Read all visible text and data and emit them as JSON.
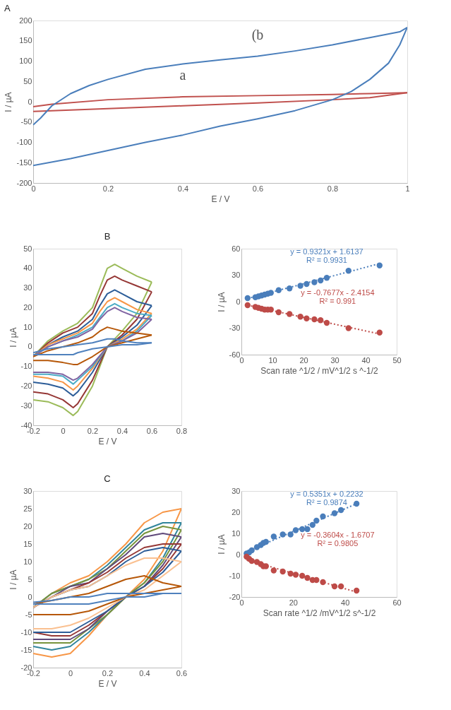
{
  "chart_data": [
    {
      "type": "line",
      "title": "A",
      "xlabel": "E / V",
      "ylabel": "I / µA",
      "xlim": [
        0,
        1
      ],
      "ylim": [
        -200,
        200
      ],
      "xticks": [
        0,
        0.2,
        0.4,
        0.6,
        0.8,
        1
      ],
      "yticks": [
        -200,
        -150,
        -100,
        -50,
        0,
        50,
        100,
        150,
        200
      ],
      "grid": false,
      "line_style": "solid",
      "series": [
        {
          "color": "#c0504d",
          "x": [
            0,
            0.05,
            0.2,
            0.4,
            0.6,
            0.8,
            0.9,
            1
          ],
          "values": [
            -12,
            -6,
            5,
            12,
            15,
            18,
            20,
            22
          ]
        },
        {
          "color": "#c0504d",
          "x": [
            0,
            0.2,
            0.4,
            0.6,
            0.8,
            0.9,
            1
          ],
          "values": [
            -24,
            -17,
            -10,
            -3,
            5,
            10,
            22
          ]
        },
        {
          "color": "#4a7ebb",
          "x": [
            0,
            0.02,
            0.05,
            0.1,
            0.15,
            0.2,
            0.3,
            0.4,
            0.5,
            0.6,
            0.7,
            0.8,
            0.9,
            0.98,
            1
          ],
          "values": [
            -57,
            -40,
            -10,
            20,
            40,
            55,
            80,
            93,
            103,
            112,
            125,
            140,
            158,
            172,
            183
          ]
        },
        {
          "color": "#4a7ebb",
          "x": [
            0,
            0.1,
            0.2,
            0.3,
            0.4,
            0.5,
            0.6,
            0.7,
            0.8,
            0.85,
            0.9,
            0.95,
            0.98,
            1
          ],
          "values": [
            -157,
            -140,
            -120,
            -100,
            -82,
            -60,
            -42,
            -22,
            5,
            25,
            55,
            95,
            140,
            183
          ]
        }
      ],
      "annotations": [
        {
          "text": "a",
          "x": 0.4,
          "y": 12
        },
        {
          "text": "(b",
          "x": 0.6,
          "y": 112
        }
      ]
    },
    {
      "type": "line",
      "title": "B",
      "xlabel": "E / V",
      "ylabel": "I /  µA",
      "xlim": [
        -0.2,
        0.8
      ],
      "ylim": [
        -40,
        50
      ],
      "xticks": [
        -0.2,
        0,
        0.2,
        0.4,
        0.6,
        0.8
      ],
      "yticks": [
        -40,
        -30,
        -20,
        -10,
        0,
        10,
        20,
        30,
        40,
        50
      ],
      "grid": false,
      "line_style": "solid",
      "series": [
        {
          "color": "#9bbb59",
          "x": [
            -0.2,
            -0.1,
            0,
            0.1,
            0.2,
            0.25,
            0.3,
            0.35,
            0.4,
            0.5,
            0.6
          ],
          "values": [
            -5,
            3,
            8,
            12,
            20,
            30,
            40,
            42,
            40,
            36,
            33
          ]
        },
        {
          "color": "#9bbb59",
          "x": [
            -0.2,
            -0.1,
            0,
            0.07,
            0.1,
            0.2,
            0.3,
            0.4,
            0.5,
            0.6
          ],
          "values": [
            -27,
            -28,
            -31,
            -35,
            -33,
            -20,
            0,
            8,
            17,
            33
          ]
        },
        {
          "color": "#953735",
          "x": [
            -0.2,
            -0.1,
            0,
            0.1,
            0.2,
            0.25,
            0.3,
            0.35,
            0.4,
            0.5,
            0.6
          ],
          "values": [
            -5,
            2,
            7,
            10,
            17,
            26,
            34,
            36,
            34,
            31,
            28
          ]
        },
        {
          "color": "#953735",
          "x": [
            -0.2,
            -0.1,
            0,
            0.07,
            0.1,
            0.2,
            0.3,
            0.4,
            0.5,
            0.6
          ],
          "values": [
            -23,
            -24,
            -27,
            -31,
            -29,
            -17,
            0,
            6,
            14,
            28
          ]
        },
        {
          "color": "#2c5d98",
          "x": [
            -0.2,
            -0.1,
            0,
            0.1,
            0.2,
            0.25,
            0.3,
            0.35,
            0.4,
            0.5,
            0.6
          ],
          "values": [
            -5,
            1,
            5,
            8,
            14,
            21,
            27,
            29,
            27,
            23,
            21
          ]
        },
        {
          "color": "#2c5d98",
          "x": [
            -0.2,
            -0.1,
            0,
            0.07,
            0.1,
            0.2,
            0.3,
            0.4,
            0.5,
            0.6
          ],
          "values": [
            -18,
            -19,
            -21,
            -25,
            -23,
            -13,
            0,
            5,
            11,
            21
          ]
        },
        {
          "color": "#f79646",
          "x": [
            -0.2,
            -0.1,
            0,
            0.1,
            0.2,
            0.25,
            0.3,
            0.35,
            0.4,
            0.5,
            0.6
          ],
          "values": [
            -5,
            1,
            4,
            7,
            12,
            18,
            23,
            25,
            23,
            19,
            17
          ]
        },
        {
          "color": "#f79646",
          "x": [
            -0.2,
            -0.1,
            0,
            0.07,
            0.1,
            0.2,
            0.3,
            0.4,
            0.5,
            0.6
          ],
          "values": [
            -15,
            -16,
            -18,
            -22,
            -20,
            -11,
            0,
            4,
            9,
            17
          ]
        },
        {
          "color": "#4bacc6",
          "x": [
            -0.2,
            -0.1,
            0,
            0.1,
            0.2,
            0.25,
            0.3,
            0.35,
            0.4,
            0.5,
            0.6
          ],
          "values": [
            -5,
            0,
            3,
            6,
            10,
            15,
            20,
            22,
            20,
            17,
            16
          ]
        },
        {
          "color": "#4bacc6",
          "x": [
            -0.2,
            -0.1,
            0,
            0.07,
            0.1,
            0.2,
            0.3,
            0.4,
            0.5,
            0.6
          ],
          "values": [
            -14,
            -14,
            -15,
            -19,
            -17,
            -10,
            0,
            3,
            8,
            16
          ]
        },
        {
          "color": "#8064a2",
          "x": [
            -0.2,
            -0.1,
            0,
            0.1,
            0.2,
            0.25,
            0.3,
            0.35,
            0.4,
            0.5,
            0.6
          ],
          "values": [
            -5,
            0,
            3,
            5,
            9,
            14,
            18,
            20,
            18,
            15,
            14
          ]
        },
        {
          "color": "#8064a2",
          "x": [
            -0.2,
            -0.1,
            0,
            0.07,
            0.1,
            0.2,
            0.3,
            0.4,
            0.5,
            0.6
          ],
          "values": [
            -13,
            -13,
            -14,
            -17,
            -16,
            -9,
            0,
            3,
            7,
            14
          ]
        },
        {
          "color": "#b65708",
          "x": [
            -0.2,
            -0.1,
            0,
            0.1,
            0.2,
            0.25,
            0.3,
            0.35,
            0.4,
            0.5,
            0.6
          ],
          "values": [
            -5,
            -2,
            0,
            2,
            5,
            8,
            10,
            9,
            8,
            7,
            6
          ]
        },
        {
          "color": "#b65708",
          "x": [
            -0.2,
            -0.1,
            0,
            0.07,
            0.1,
            0.2,
            0.3,
            0.4,
            0.5,
            0.6
          ],
          "values": [
            -7,
            -7,
            -8,
            -9,
            -9,
            -5,
            0,
            2,
            4,
            6
          ]
        },
        {
          "color": "#4f81bd",
          "x": [
            -0.2,
            -0.1,
            0,
            0.1,
            0.2,
            0.25,
            0.3,
            0.35,
            0.4,
            0.5,
            0.6
          ],
          "values": [
            -3,
            -1,
            0,
            1,
            2,
            3,
            4,
            4,
            3,
            2,
            2
          ]
        },
        {
          "color": "#4f81bd",
          "x": [
            -0.2,
            -0.1,
            0,
            0.07,
            0.1,
            0.2,
            0.3,
            0.4,
            0.5,
            0.6
          ],
          "values": [
            -4,
            -4,
            -4,
            -4,
            -3,
            -1,
            0,
            1,
            1,
            2
          ]
        }
      ]
    },
    {
      "type": "scatter",
      "xlabel": "Scan rate ^1/2 / mV^1/2 s ^-1/2",
      "ylabel": "I / µA",
      "xlim": [
        0,
        50
      ],
      "ylim": [
        -60,
        60
      ],
      "xticks": [
        0,
        10,
        20,
        30,
        40,
        50
      ],
      "yticks": [
        -60,
        -30,
        0,
        30,
        60
      ],
      "grid": false,
      "marker": "circle",
      "series": [
        {
          "color": "#4a7ebb",
          "x": [
            2,
            4.5,
            5.5,
            6.5,
            7.5,
            8.5,
            9.5,
            12,
            15.5,
            19,
            21,
            23.5,
            25.5,
            27.5,
            34.5,
            44.5
          ],
          "values": [
            4,
            5,
            6,
            7,
            8,
            9,
            10,
            13,
            15,
            18,
            20,
            22,
            24,
            27,
            35,
            41
          ]
        },
        {
          "color": "#be4b48",
          "x": [
            2,
            4.5,
            5.5,
            6.5,
            7.5,
            8.5,
            9.5,
            12,
            15.5,
            19,
            21,
            23.5,
            25.5,
            27.5,
            34.5,
            44.5
          ],
          "values": [
            -4,
            -6,
            -7,
            -8,
            -9,
            -9,
            -9,
            -12,
            -14,
            -17,
            -19,
            -20,
            -21,
            -24,
            -30,
            -35
          ]
        },
        {
          "type": "line",
          "marker": "none",
          "line_style": "dotted",
          "color": "#4a7ebb",
          "x": [
            2,
            44.5
          ],
          "values": [
            3.5,
            43.1
          ]
        },
        {
          "type": "line",
          "marker": "none",
          "line_style": "dotted",
          "color": "#be4b48",
          "x": [
            2,
            44.5
          ],
          "values": [
            -4,
            -36.6
          ]
        }
      ],
      "annotations": [
        "y = 0.9321x + 1.6137",
        "R² = 0.9931",
        "y = -0.7677x - 2.4154",
        "R² = 0.991"
      ]
    },
    {
      "type": "line",
      "title": "C",
      "xlabel": "E / V",
      "ylabel": "I / µA",
      "xlim": [
        -0.2,
        0.6
      ],
      "ylim": [
        -20,
        30
      ],
      "xticks": [
        -0.2,
        0,
        0.2,
        0.4,
        0.6
      ],
      "yticks": [
        -20,
        -15,
        -10,
        -5,
        0,
        5,
        10,
        15,
        20,
        25,
        30
      ],
      "grid": false,
      "line_style": "solid",
      "series": [
        {
          "color": "#f79646",
          "x": [
            -0.2,
            -0.1,
            0,
            0.1,
            0.2,
            0.3,
            0.4,
            0.5,
            0.6
          ],
          "values": [
            -3,
            1,
            4,
            6,
            10,
            15,
            21,
            24,
            25
          ]
        },
        {
          "color": "#f79646",
          "x": [
            -0.2,
            -0.1,
            0,
            0.1,
            0.2,
            0.3,
            0.4,
            0.5,
            0.6
          ],
          "values": [
            -16,
            -17,
            -16,
            -11,
            -5,
            0,
            5,
            13,
            25
          ]
        },
        {
          "color": "#31859c",
          "x": [
            -0.2,
            -0.1,
            0,
            0.1,
            0.2,
            0.3,
            0.4,
            0.5,
            0.6
          ],
          "values": [
            -3,
            1,
            3,
            5,
            9,
            14,
            19,
            21,
            21
          ]
        },
        {
          "color": "#31859c",
          "x": [
            -0.2,
            -0.1,
            0,
            0.1,
            0.2,
            0.3,
            0.4,
            0.5,
            0.6
          ],
          "values": [
            -14,
            -15,
            -14,
            -10,
            -5,
            0,
            4,
            11,
            21
          ]
        },
        {
          "color": "#77933c",
          "x": [
            -0.2,
            -0.1,
            0,
            0.1,
            0.2,
            0.3,
            0.4,
            0.5,
            0.6
          ],
          "values": [
            -3,
            1,
            3,
            5,
            8,
            13,
            18,
            20,
            19
          ]
        },
        {
          "color": "#77933c",
          "x": [
            -0.2,
            -0.1,
            0,
            0.1,
            0.2,
            0.3,
            0.4,
            0.5,
            0.6
          ],
          "values": [
            -13,
            -13,
            -13,
            -9,
            -5,
            0,
            4,
            10,
            19
          ]
        },
        {
          "color": "#5f497a",
          "x": [
            -0.2,
            -0.1,
            0,
            0.1,
            0.2,
            0.3,
            0.4,
            0.5,
            0.6
          ],
          "values": [
            -3,
            0,
            3,
            4,
            8,
            12,
            17,
            18,
            17
          ]
        },
        {
          "color": "#5f497a",
          "x": [
            -0.2,
            -0.1,
            0,
            0.1,
            0.2,
            0.3,
            0.4,
            0.5,
            0.6
          ],
          "values": [
            -12,
            -12,
            -12,
            -9,
            -4,
            0,
            3,
            9,
            17
          ]
        },
        {
          "color": "#953735",
          "x": [
            -0.2,
            -0.1,
            0,
            0.1,
            0.2,
            0.3,
            0.4,
            0.5,
            0.6
          ],
          "values": [
            -3,
            0,
            2,
            4,
            7,
            11,
            14,
            15,
            15
          ]
        },
        {
          "color": "#953735",
          "x": [
            -0.2,
            -0.1,
            0,
            0.1,
            0.2,
            0.3,
            0.4,
            0.5,
            0.6
          ],
          "values": [
            -10,
            -11,
            -11,
            -8,
            -4,
            0,
            3,
            8,
            15
          ]
        },
        {
          "color": "#2c5d98",
          "x": [
            -0.2,
            -0.1,
            0,
            0.1,
            0.2,
            0.3,
            0.4,
            0.5,
            0.6
          ],
          "values": [
            -3,
            0,
            2,
            3,
            6,
            10,
            13,
            14,
            13
          ]
        },
        {
          "color": "#2c5d98",
          "x": [
            -0.2,
            -0.1,
            0,
            0.1,
            0.2,
            0.3,
            0.4,
            0.5,
            0.6
          ],
          "values": [
            -10,
            -10,
            -10,
            -7,
            -4,
            0,
            3,
            7,
            13
          ]
        },
        {
          "color": "#fac090",
          "x": [
            -0.2,
            -0.1,
            0,
            0.1,
            0.2,
            0.3,
            0.4,
            0.5,
            0.6
          ],
          "values": [
            -3,
            0,
            2,
            3,
            6,
            9,
            11,
            11,
            10
          ]
        },
        {
          "color": "#fac090",
          "x": [
            -0.2,
            -0.1,
            0,
            0.1,
            0.2,
            0.3,
            0.4,
            0.5,
            0.6
          ],
          "values": [
            -9,
            -9,
            -8,
            -6,
            -3,
            0,
            2,
            6,
            10
          ]
        },
        {
          "color": "#b65708",
          "x": [
            -0.2,
            -0.1,
            0,
            0.1,
            0.2,
            0.3,
            0.4,
            0.5,
            0.6
          ],
          "values": [
            -2,
            -1,
            0,
            1,
            3,
            5,
            6,
            4,
            3
          ]
        },
        {
          "color": "#b65708",
          "x": [
            -0.2,
            -0.1,
            0,
            0.1,
            0.2,
            0.3,
            0.4,
            0.5,
            0.6
          ],
          "values": [
            -5,
            -5,
            -5,
            -4,
            -2,
            0,
            1,
            2,
            3
          ]
        },
        {
          "color": "#4f81bd",
          "x": [
            -0.2,
            -0.1,
            0,
            0.1,
            0.2,
            0.3,
            0.4,
            0.5,
            0.6
          ],
          "values": [
            -1.5,
            -1,
            0,
            0,
            1,
            1,
            1,
            1,
            1
          ]
        },
        {
          "color": "#4f81bd",
          "x": [
            -0.2,
            -0.1,
            0,
            0.1,
            0.2,
            0.3,
            0.4,
            0.5,
            0.6
          ],
          "values": [
            -2,
            -2,
            -2,
            -2,
            -1,
            0,
            0,
            1,
            1
          ]
        }
      ]
    },
    {
      "type": "scatter",
      "xlabel": "Scan rate ^1/2 /mV^1/2 s^-1/2",
      "ylabel": "I / µA",
      "xlim": [
        0,
        60
      ],
      "ylim": [
        -20,
        30
      ],
      "xticks": [
        0,
        20,
        40,
        60
      ],
      "yticks": [
        -20,
        -10,
        0,
        10,
        20,
        30
      ],
      "grid": false,
      "marker": "circle",
      "series": [
        {
          "color": "#4a7ebb",
          "x": [
            2,
            3,
            4,
            6,
            7.5,
            8.5,
            9.5,
            12.5,
            16,
            19,
            21,
            23.5,
            25.5,
            27.5,
            29,
            31.5,
            36,
            38.5,
            44.5
          ],
          "values": [
            0.5,
            1,
            2,
            3.5,
            4.5,
            5.5,
            6,
            8.5,
            9.5,
            9.5,
            11.5,
            12,
            12,
            14,
            16,
            18,
            19.5,
            21,
            24
          ]
        },
        {
          "color": "#be4b48",
          "x": [
            2,
            3,
            4,
            6,
            7.5,
            8.5,
            9.5,
            12.5,
            16,
            19,
            21,
            23.5,
            25.5,
            27.5,
            29,
            31.5,
            36,
            38.5,
            44.5
          ],
          "values": [
            -1,
            -2,
            -3,
            -3.5,
            -4.5,
            -5.5,
            -5.5,
            -7.5,
            -8,
            -9,
            -9.5,
            -10,
            -11,
            -12,
            -12,
            -13,
            -15,
            -15,
            -17
          ]
        },
        {
          "type": "line",
          "marker": "none",
          "line_style": "dotted",
          "color": "#4a7ebb",
          "x": [
            2,
            44.5
          ],
          "values": [
            1.3,
            24
          ]
        },
        {
          "type": "line",
          "marker": "none",
          "line_style": "dotted",
          "color": "#be4b48",
          "x": [
            2,
            44.5
          ],
          "values": [
            -2.4,
            -17.7
          ]
        }
      ],
      "annotations": [
        "y = 0.5351x + 0.2232",
        "R² = 0.9874",
        "y = -0.3604x - 1.6707",
        "R² = 0.9805"
      ]
    }
  ]
}
